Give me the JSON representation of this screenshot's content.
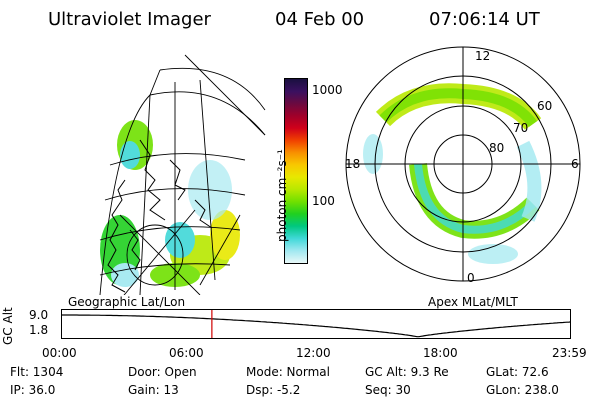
{
  "header": {
    "instrument": "Ultraviolet Imager",
    "date": "04 Feb 00",
    "time": "07:06:14 UT"
  },
  "geo_panel": {
    "label": "Geographic Lat/Lon"
  },
  "apex_panel": {
    "label": "Apex MLat/MLT",
    "mlt_labels": [
      "12",
      "18",
      "6",
      "0"
    ],
    "lat_labels": [
      "60",
      "70",
      "80"
    ]
  },
  "colorbar": {
    "unit_label": "photon cm⁻²s⁻¹",
    "ticks": [
      "1000",
      "100"
    ],
    "colors": [
      "#1a1040",
      "#3a1060",
      "#6a0a40",
      "#a0002a",
      "#d0001a",
      "#f04000",
      "#f89000",
      "#f8c800",
      "#e8e800",
      "#b8e800",
      "#70e000",
      "#20d020",
      "#00c880",
      "#40d8d8",
      "#a0e8f0",
      "#e8f8f8"
    ]
  },
  "orbit_plot": {
    "ylabel": "GC Alt",
    "yticks": [
      "9.0",
      "1.8"
    ],
    "xticks": [
      "00:00",
      "06:00",
      "12:00",
      "18:00",
      "23:59"
    ],
    "current_time_hours": 7.1,
    "min_alt_time_hours": 16.8
  },
  "info": {
    "row1": {
      "flt": "Flt: 1304",
      "door": "Door: Open",
      "mode": "Mode: Normal",
      "gcalt": "GC Alt: 9.3 Re",
      "glat": "GLat:  72.6"
    },
    "row2": {
      "ip": "IP: 36.0",
      "gain": "Gain: 13",
      "dsp": "Dsp:    -5.2",
      "seq": "Seq: 30",
      "glon": "GLon: 238.0"
    }
  }
}
